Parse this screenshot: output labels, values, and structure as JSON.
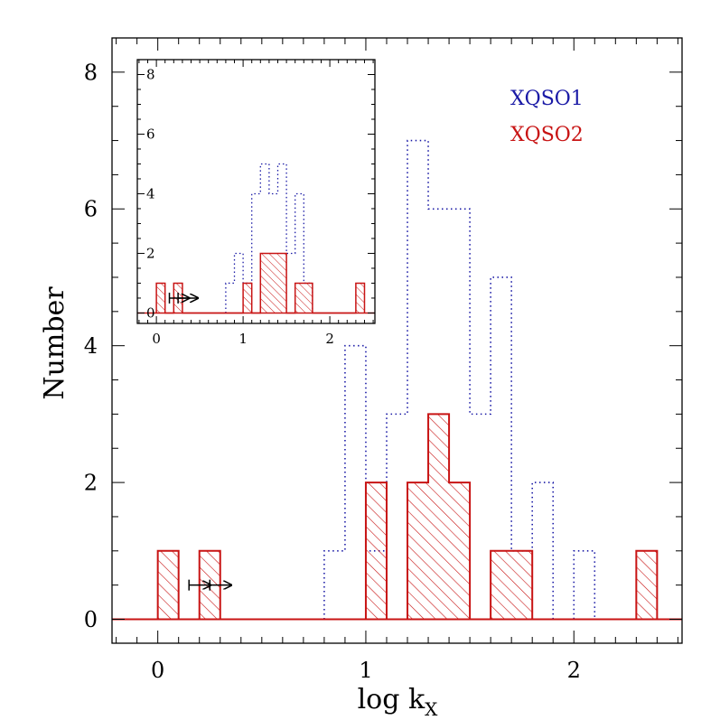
{
  "chart_data": [
    {
      "type": "histogram",
      "xlabel": "log  k",
      "xlabel_sub": "X",
      "ylabel": "Number",
      "xlim": [
        -0.22,
        2.52
      ],
      "ylim": [
        -0.35,
        8.5
      ],
      "x_ticks": [
        0,
        1,
        2
      ],
      "x_tick_labels": [
        "0",
        "1",
        "2"
      ],
      "y_ticks": [
        0,
        2,
        4,
        6,
        8
      ],
      "y_tick_labels": [
        "0",
        "2",
        "4",
        "6",
        "8"
      ],
      "bin_width": 0.1,
      "legend": [
        "XQSO1",
        "XQSO2"
      ],
      "legend_placement": "top-right",
      "series": [
        {
          "name": "XQSO1",
          "style": "dotted",
          "color": "#1a1aa6",
          "bin_edges": [
            0.8,
            0.9,
            1.0,
            1.1,
            1.2,
            1.3,
            1.4,
            1.5,
            1.6,
            1.7,
            1.8,
            1.9,
            2.0,
            2.1
          ],
          "counts": [
            1,
            4,
            1,
            3,
            7,
            6,
            6,
            3,
            5,
            1,
            2,
            0,
            1
          ]
        },
        {
          "name": "XQSO2",
          "style": "hatched",
          "color": "#c81414",
          "bin_edges": [
            0.0,
            0.1,
            0.2,
            0.3,
            1.0,
            1.1,
            1.2,
            1.3,
            1.4,
            1.5,
            1.6,
            1.7,
            1.8,
            2.3,
            2.4
          ],
          "counts": [
            1,
            0,
            1,
            0,
            2,
            0,
            2,
            3,
            2,
            0,
            1,
            1,
            0,
            1
          ]
        }
      ],
      "lower_limit_arrows": [
        {
          "x": 0.15,
          "y": 0.5
        },
        {
          "x": 0.25,
          "y": 0.5
        }
      ]
    },
    {
      "type": "histogram",
      "role": "inset",
      "xlim": [
        -0.22,
        2.52
      ],
      "ylim": [
        -0.35,
        8.5
      ],
      "x_ticks": [
        0,
        1,
        2
      ],
      "x_tick_labels": [
        "0",
        "1",
        "2"
      ],
      "y_ticks": [
        0,
        2,
        4,
        6,
        8
      ],
      "y_tick_labels": [
        "0",
        "2",
        "4",
        "6",
        "8"
      ],
      "bin_width": 0.1,
      "series": [
        {
          "name": "XQSO1",
          "style": "dotted",
          "color": "#1a1aa6",
          "bin_edges": [
            0.8,
            0.9,
            1.0,
            1.1,
            1.2,
            1.3,
            1.4,
            1.5,
            1.6,
            1.7,
            1.8
          ],
          "counts": [
            1,
            2,
            1,
            4,
            5,
            4,
            5,
            2,
            4,
            1
          ]
        },
        {
          "name": "XQSO2",
          "style": "hatched",
          "color": "#c81414",
          "bin_edges": [
            0.0,
            0.1,
            0.2,
            0.3,
            1.0,
            1.1,
            1.2,
            1.3,
            1.4,
            1.5,
            1.6,
            1.7,
            1.8,
            2.3,
            2.4
          ],
          "counts": [
            1,
            0,
            1,
            0,
            1,
            0,
            2,
            2,
            2,
            0,
            1,
            1,
            0,
            1
          ]
        }
      ],
      "lower_limit_arrows": [
        {
          "x": 0.15,
          "y": 0.5
        },
        {
          "x": 0.25,
          "y": 0.5
        }
      ]
    }
  ]
}
